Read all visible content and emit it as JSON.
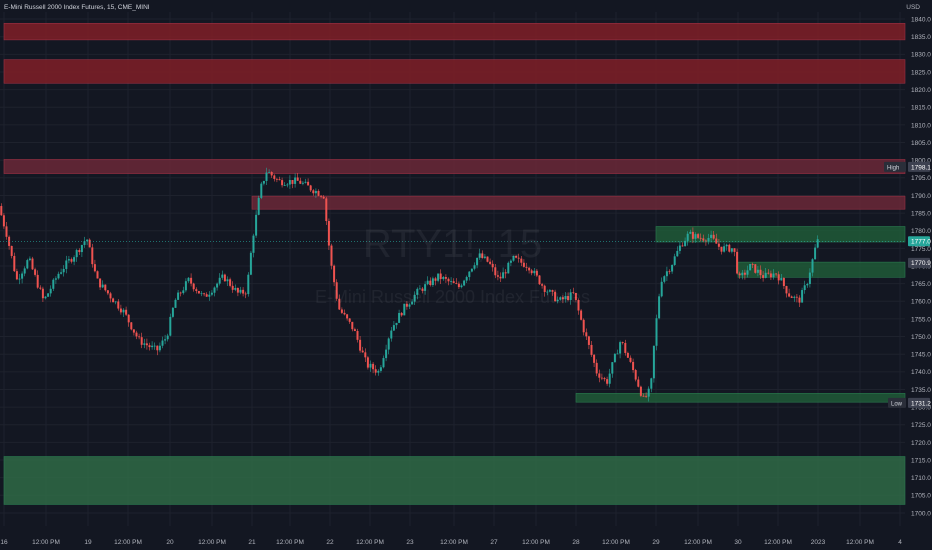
{
  "header": {
    "title": "E-Mini Russell 2000 Index Futures, 15, CME_MINI",
    "currency": "USD"
  },
  "watermark": {
    "symbol": "RTY1!, 15",
    "name": "E-Mini Russell 2000 Index Futures"
  },
  "colors": {
    "bg": "#131722",
    "up": "#26a69a",
    "down": "#ef5350",
    "grid": "#1e222d",
    "axisText": "#b2b5be",
    "supply": "#8b1e26",
    "supplyLight": "#6d2a3a",
    "demand": "#1e5f3b",
    "demandLight": "#2e6b48"
  },
  "chart_data": {
    "type": "candlestick",
    "ylim": [
      1698,
      1842
    ],
    "y_ticks": [
      1700,
      1705,
      1710,
      1715,
      1720,
      1725,
      1730,
      1735,
      1740,
      1745,
      1750,
      1755,
      1760,
      1765,
      1770,
      1775,
      1780,
      1785,
      1790,
      1795,
      1800,
      1805,
      1810,
      1815,
      1820,
      1825,
      1830,
      1835,
      1840
    ],
    "x_ticks": [
      "16",
      "12:00 PM",
      "19",
      "12:00 PM",
      "20",
      "12:00 PM",
      "21",
      "12:00 PM",
      "22",
      "12:00 PM",
      "23",
      "12:00 PM",
      "27",
      "12:00 PM",
      "28",
      "12:00 PM",
      "29",
      "12:00 PM",
      "30",
      "12:00 PM",
      "2023",
      "12:00 PM",
      "4"
    ],
    "price_labels": [
      {
        "label": "High",
        "value": 1798.1,
        "text": "1798.1",
        "color": "#3d4150"
      },
      {
        "label": "",
        "value": 1777.0,
        "text": "1777.0",
        "color": "#26a69a"
      },
      {
        "label": "",
        "value": 1770.9,
        "text": "1770.9",
        "color": "#3d4150"
      },
      {
        "label": "Low",
        "value": 1731.2,
        "text": "1731.2",
        "color": "#3d4150"
      }
    ],
    "zones": [
      {
        "kind": "supply",
        "from_day": "16",
        "to": "right",
        "top": 1838.8,
        "bottom": 1834.1
      },
      {
        "kind": "supply",
        "from_day": "16",
        "to": "right",
        "top": 1828.5,
        "bottom": 1821.8
      },
      {
        "kind": "supply",
        "from_day": "16",
        "to": "right",
        "top": 1800.2,
        "bottom": 1796.2
      },
      {
        "kind": "supply",
        "from_day": "21",
        "to": "right",
        "top": 1789.8,
        "bottom": 1786.1
      },
      {
        "kind": "demand",
        "from_day": "29",
        "to": "right",
        "top": 1781.2,
        "bottom": 1776.8
      },
      {
        "kind": "demand",
        "from_day": "30",
        "to": "right",
        "top": 1771.1,
        "bottom": 1766.8
      },
      {
        "kind": "demand",
        "from_day": "28",
        "to": "right",
        "top": 1733.9,
        "bottom": 1731.4
      },
      {
        "kind": "demand",
        "from_day": "16",
        "to": "right",
        "top": 1716.0,
        "bottom": 1702.4
      }
    ],
    "price_path": [
      {
        "t": 0,
        "p": 1787
      },
      {
        "t": 8,
        "p": 1779
      },
      {
        "t": 18,
        "p": 1766
      },
      {
        "t": 30,
        "p": 1772
      },
      {
        "t": 45,
        "p": 1760
      },
      {
        "t": 60,
        "p": 1768
      },
      {
        "t": 78,
        "p": 1774
      },
      {
        "t": 88,
        "p": 1778
      },
      {
        "t": 98,
        "p": 1766
      },
      {
        "t": 110,
        "p": 1762
      },
      {
        "t": 125,
        "p": 1757
      },
      {
        "t": 140,
        "p": 1749
      },
      {
        "t": 158,
        "p": 1746
      },
      {
        "t": 168,
        "p": 1750
      },
      {
        "t": 176,
        "p": 1760
      },
      {
        "t": 190,
        "p": 1766
      },
      {
        "t": 205,
        "p": 1761
      },
      {
        "t": 225,
        "p": 1767
      },
      {
        "t": 240,
        "p": 1762
      },
      {
        "t": 248,
        "p": 1763
      },
      {
        "t": 254,
        "p": 1778
      },
      {
        "t": 262,
        "p": 1792
      },
      {
        "t": 268,
        "p": 1797
      },
      {
        "t": 280,
        "p": 1794
      },
      {
        "t": 300,
        "p": 1794
      },
      {
        "t": 312,
        "p": 1792
      },
      {
        "t": 325,
        "p": 1790
      },
      {
        "t": 332,
        "p": 1771
      },
      {
        "t": 340,
        "p": 1758
      },
      {
        "t": 355,
        "p": 1752
      },
      {
        "t": 368,
        "p": 1742
      },
      {
        "t": 380,
        "p": 1740
      },
      {
        "t": 392,
        "p": 1752
      },
      {
        "t": 405,
        "p": 1758
      },
      {
        "t": 420,
        "p": 1763
      },
      {
        "t": 440,
        "p": 1767
      },
      {
        "t": 460,
        "p": 1764
      },
      {
        "t": 480,
        "p": 1773
      },
      {
        "t": 490,
        "p": 1771
      },
      {
        "t": 500,
        "p": 1766
      },
      {
        "t": 515,
        "p": 1772
      },
      {
        "t": 530,
        "p": 1770
      },
      {
        "t": 545,
        "p": 1764
      },
      {
        "t": 560,
        "p": 1760
      },
      {
        "t": 575,
        "p": 1762
      },
      {
        "t": 585,
        "p": 1752
      },
      {
        "t": 598,
        "p": 1740
      },
      {
        "t": 608,
        "p": 1737
      },
      {
        "t": 622,
        "p": 1749
      },
      {
        "t": 635,
        "p": 1740
      },
      {
        "t": 645,
        "p": 1732
      },
      {
        "t": 652,
        "p": 1735
      },
      {
        "t": 656,
        "p": 1750
      },
      {
        "t": 662,
        "p": 1766
      },
      {
        "t": 672,
        "p": 1770
      },
      {
        "t": 682,
        "p": 1776
      },
      {
        "t": 690,
        "p": 1779
      },
      {
        "t": 700,
        "p": 1778
      },
      {
        "t": 712,
        "p": 1778
      },
      {
        "t": 722,
        "p": 1775
      },
      {
        "t": 735,
        "p": 1775
      },
      {
        "t": 740,
        "p": 1766
      },
      {
        "t": 752,
        "p": 1770
      },
      {
        "t": 765,
        "p": 1767
      },
      {
        "t": 778,
        "p": 1768
      },
      {
        "t": 790,
        "p": 1762
      },
      {
        "t": 800,
        "p": 1760
      },
      {
        "t": 808,
        "p": 1765
      },
      {
        "t": 815,
        "p": 1773
      },
      {
        "t": 818,
        "p": 1777
      }
    ]
  }
}
